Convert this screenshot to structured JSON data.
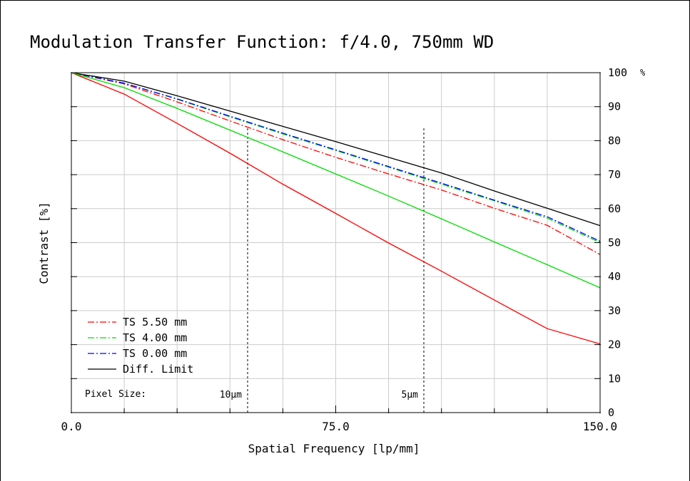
{
  "chart_data": {
    "type": "line",
    "title": "Modulation Transfer Function: f/4.0, 750mm WD",
    "xlabel": "Spatial Frequency [lp/mm]",
    "ylabel": "Contrast [%]",
    "xlim": [
      0,
      150
    ],
    "ylim": [
      0,
      100
    ],
    "x_tick_labels": [
      "0.0",
      "75.0",
      "150.0"
    ],
    "x_label_ticks": [
      0,
      75,
      150
    ],
    "x_minor_step": 15,
    "y_ticks": [
      0,
      10,
      20,
      30,
      40,
      50,
      60,
      70,
      80,
      90,
      100
    ],
    "y_tick_labels": [
      "0",
      "10",
      "20",
      "30",
      "40",
      "50",
      "60",
      "70",
      "80",
      "90",
      "100"
    ],
    "y_unit": "%",
    "grid": true,
    "legend_position": "bottom-left",
    "x": [
      0,
      15,
      30,
      45,
      60,
      75,
      90,
      105,
      120,
      135,
      150
    ],
    "series": [
      {
        "name": "TS 5.50 mm",
        "color": "#ff0000",
        "dash": "dash-dot",
        "values": [
          100,
          96.7,
          91.4,
          85.8,
          80.3,
          75.1,
          70.2,
          65.5,
          60.1,
          55.1,
          46.5
        ]
      },
      {
        "name": "TS 4.00 mm",
        "color": "#00dd00",
        "dash": "dash-dot",
        "values": [
          100,
          96.9,
          92.2,
          87.0,
          82.0,
          77.1,
          72.2,
          67.2,
          62.3,
          57.2,
          50.0
        ]
      },
      {
        "name": "TS 0.00 mm",
        "color": "#0000ff",
        "dash": "dash-dot",
        "values": [
          100,
          96.9,
          92.3,
          87.2,
          82.2,
          77.3,
          72.4,
          67.5,
          62.5,
          57.6,
          50.4
        ]
      },
      {
        "name": "Diff. Limit",
        "color": "#000000",
        "dash": "solid",
        "values": [
          100,
          97.5,
          93.2,
          88.7,
          84.2,
          79.7,
          75.1,
          70.5,
          65.2,
          60.1,
          55.0
        ]
      },
      {
        "name": "",
        "color": "#ff0000",
        "dash": "solid",
        "values": [
          100,
          93.7,
          85.1,
          76.3,
          67.2,
          58.6,
          49.9,
          41.6,
          33.1,
          24.7,
          20.2
        ]
      },
      {
        "name": "",
        "color": "#00dd00",
        "dash": "solid",
        "values": [
          100,
          95.6,
          89.5,
          83.1,
          76.7,
          70.2,
          63.7,
          57.0,
          50.2,
          43.5,
          36.7
        ]
      }
    ],
    "pixel_size": {
      "label": "Pixel Size:",
      "markers": [
        {
          "label": "10µm",
          "x": 50
        },
        {
          "label": "5µm",
          "x": 100
        }
      ]
    }
  }
}
